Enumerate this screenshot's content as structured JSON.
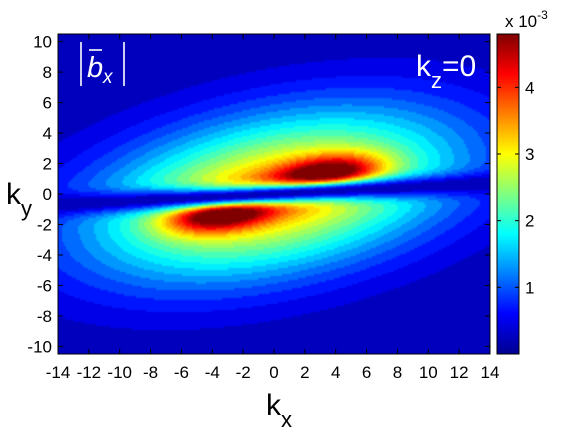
{
  "chart_data": {
    "type": "heatmap",
    "title": "",
    "xlabel": "k",
    "xlabel_sub": "x",
    "ylabel": "k",
    "ylabel_sub": "y",
    "xlim": [
      -14,
      14
    ],
    "ylim": [
      -10.5,
      10.5
    ],
    "x_ticks": [
      -14,
      -12,
      -10,
      -8,
      -6,
      -4,
      -2,
      0,
      2,
      4,
      6,
      8,
      10,
      12,
      14
    ],
    "y_ticks": [
      -10,
      -8,
      -6,
      -4,
      -2,
      0,
      2,
      4,
      6,
      8,
      10
    ],
    "colormap": "jet",
    "colorbar": {
      "min": 0,
      "max": 4.8,
      "ticks": [
        1,
        2,
        3,
        4
      ],
      "exponent_label": "x 10",
      "exponent_power": "-3"
    },
    "annotations": {
      "field_label": "|b̄x|",
      "field_symbol": "b",
      "field_subscript": "x",
      "slice_label_main": "k",
      "slice_label_sub": "z",
      "slice_label_value": "=0"
    },
    "peaks": [
      {
        "kx": 3.3,
        "ky": 1.1,
        "value": 4.8
      },
      {
        "kx": -3.3,
        "ky": -1.1,
        "value": 4.8
      }
    ],
    "minimum_line": "ky ≈ 0.05·kx (near-zero band)"
  }
}
